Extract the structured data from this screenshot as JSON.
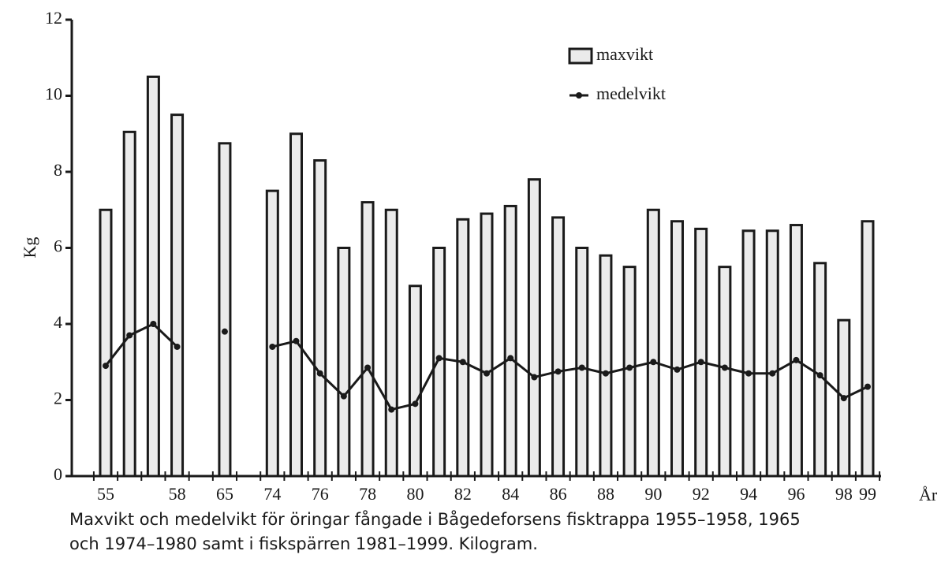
{
  "chart_data": {
    "type": "bar",
    "y_label": "Kg",
    "x_label": "År",
    "caption": [
      "Maxvikt och medelvikt för öringar fångade i Bågedeforsens fisktrappa 1955–1958, 1965",
      "och 1974–1980 samt i fiskspärren 1981–1999. Kilogram."
    ],
    "categories": [
      "55",
      null,
      null,
      "58",
      null,
      "65",
      null,
      "74",
      null,
      "76",
      null,
      "78",
      null,
      "80",
      null,
      "82",
      null,
      "84",
      null,
      "86",
      null,
      "88",
      null,
      "90",
      null,
      "92",
      null,
      "94",
      null,
      "96",
      null,
      "98",
      "99"
    ],
    "series": [
      {
        "name": "maxvikt",
        "type": "bar",
        "color": "#ebebeb",
        "values": [
          7.0,
          9.05,
          10.5,
          9.5,
          null,
          8.75,
          null,
          7.5,
          9.0,
          8.3,
          6.0,
          7.2,
          7.0,
          5.0,
          6.0,
          6.75,
          6.9,
          7.1,
          7.8,
          6.8,
          6.0,
          5.8,
          5.5,
          7.0,
          6.7,
          6.5,
          5.5,
          6.45,
          6.45,
          6.6,
          5.6,
          4.1,
          6.7
        ]
      },
      {
        "name": "medelvikt",
        "type": "line",
        "color": "#1a1a1a",
        "values": [
          2.9,
          3.7,
          4.0,
          3.4,
          null,
          3.8,
          null,
          3.4,
          3.55,
          2.7,
          2.1,
          2.85,
          1.75,
          1.9,
          3.1,
          3.0,
          2.7,
          3.1,
          2.6,
          2.75,
          2.85,
          2.7,
          2.85,
          3.0,
          2.8,
          3.0,
          2.85,
          2.7,
          2.7,
          3.05,
          2.65,
          2.05,
          2.35
        ]
      }
    ],
    "ylim": [
      0,
      12
    ],
    "yticks": [
      0,
      2,
      4,
      6,
      8,
      10,
      12
    ],
    "grid": false
  }
}
